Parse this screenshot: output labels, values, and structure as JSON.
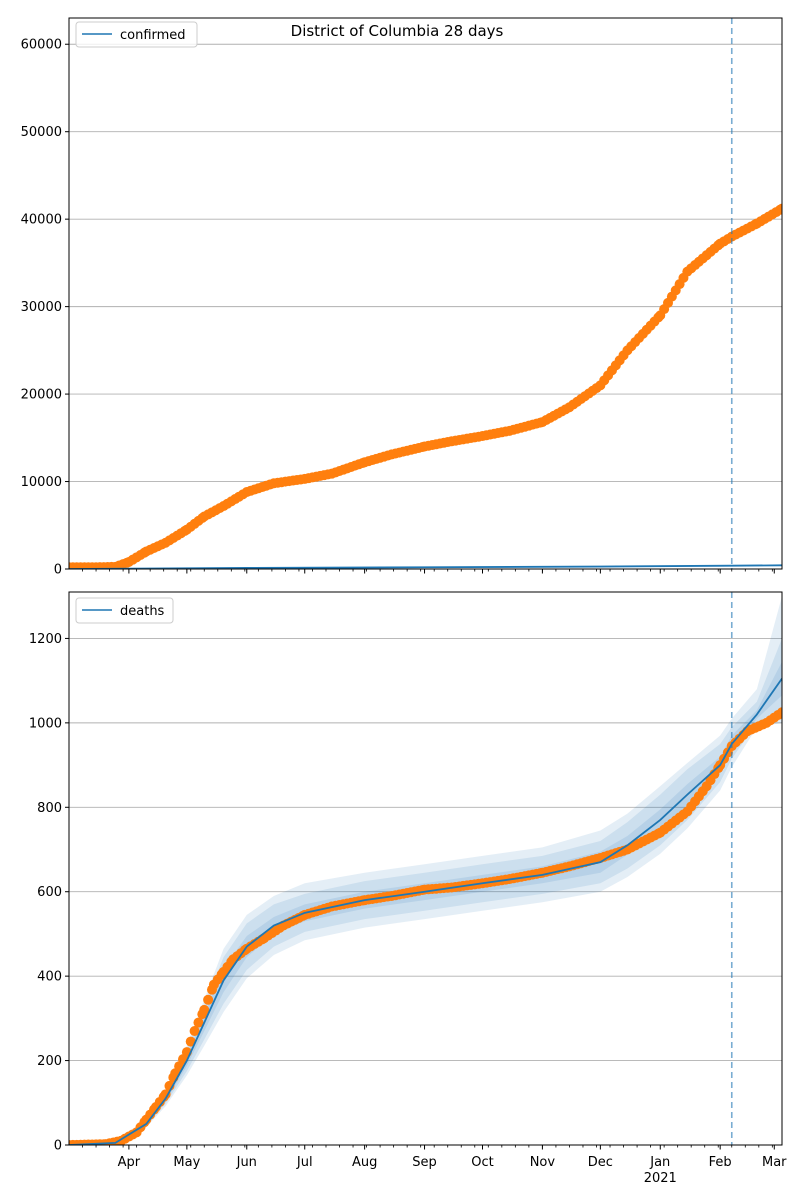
{
  "figure": {
    "title": "District of Columbia 28 days"
  },
  "chart_data": [
    {
      "type": "line",
      "name": "confirmed-panel",
      "title": "District of Columbia 28 days",
      "xlabel": "",
      "ylabel": "",
      "x_range": [
        "2020-03-01",
        "2021-03-05"
      ],
      "ylim": [
        0,
        63000
      ],
      "y_ticks": [
        0,
        10000,
        20000,
        30000,
        40000,
        50000,
        60000
      ],
      "grid": "horizontal",
      "legend": {
        "placement": "top-left",
        "entries": [
          "confirmed"
        ]
      },
      "forecast_start": "2021-02-07",
      "colors": {
        "model": "#1f77b4",
        "observed": "#ff7f0e",
        "band": "#1f77b4"
      },
      "series": [
        {
          "name": "confirmed",
          "style": "line",
          "x": [
            "2020-03-01",
            "2020-06-01",
            "2020-09-01",
            "2020-12-01",
            "2021-02-07",
            "2021-03-05"
          ],
          "values": [
            0,
            120,
            200,
            280,
            380,
            420
          ]
        },
        {
          "style": "points",
          "x": [
            "2020-03-01",
            "2020-03-15",
            "2020-03-25",
            "2020-04-01",
            "2020-04-10",
            "2020-04-20",
            "2020-05-01",
            "2020-05-10",
            "2020-05-20",
            "2020-06-01",
            "2020-06-15",
            "2020-07-01",
            "2020-07-15",
            "2020-08-01",
            "2020-08-15",
            "2020-09-01",
            "2020-09-15",
            "2020-10-01",
            "2020-10-15",
            "2020-11-01",
            "2020-11-15",
            "2020-12-01",
            "2020-12-15",
            "2021-01-01",
            "2021-01-15",
            "2021-02-01",
            "2021-02-07",
            "2021-02-20",
            "2021-03-05"
          ],
          "values": [
            200,
            200,
            250,
            800,
            2000,
            3000,
            4500,
            6000,
            7200,
            8800,
            9800,
            10300,
            10900,
            12200,
            13100,
            14000,
            14600,
            15200,
            15800,
            16800,
            18500,
            21000,
            25000,
            29000,
            34000,
            37200,
            38000,
            39500,
            41200
          ]
        }
      ],
      "bands": []
    },
    {
      "type": "line",
      "name": "deaths-panel",
      "title": "",
      "xlabel": "",
      "ylabel": "",
      "x_range": [
        "2020-03-01",
        "2021-03-05"
      ],
      "ylim": [
        0,
        1310
      ],
      "y_ticks": [
        0,
        200,
        400,
        600,
        800,
        1000,
        1200
      ],
      "x_tick_labels": [
        "Apr",
        "May",
        "Jun",
        "Jul",
        "Aug",
        "Sep",
        "Oct",
        "Nov",
        "Dec",
        "Jan",
        "Feb",
        "Mar"
      ],
      "x_tick_dates": [
        "2020-04-01",
        "2020-05-01",
        "2020-06-01",
        "2020-07-01",
        "2020-08-01",
        "2020-09-01",
        "2020-10-01",
        "2020-11-01",
        "2020-12-01",
        "2021-01-01",
        "2021-02-01",
        "2021-03-01"
      ],
      "x_year_label": "2021",
      "grid": "horizontal",
      "legend": {
        "placement": "top-left",
        "entries": [
          "deaths"
        ]
      },
      "forecast_start": "2021-02-07",
      "colors": {
        "model": "#1f77b4",
        "observed": "#ff7f0e",
        "band": "#1f77b4"
      },
      "series": [
        {
          "name": "deaths",
          "style": "line",
          "x": [
            "2020-03-01",
            "2020-03-25",
            "2020-04-10",
            "2020-04-20",
            "2020-05-01",
            "2020-05-10",
            "2020-05-20",
            "2020-06-01",
            "2020-06-15",
            "2020-07-01",
            "2020-08-01",
            "2020-09-01",
            "2020-10-01",
            "2020-11-01",
            "2020-12-01",
            "2020-12-15",
            "2021-01-01",
            "2021-01-15",
            "2021-02-01",
            "2021-02-07",
            "2021-02-20",
            "2021-03-05"
          ],
          "values": [
            0,
            5,
            50,
            110,
            200,
            290,
            390,
            470,
            520,
            550,
            580,
            600,
            620,
            640,
            670,
            710,
            770,
            830,
            900,
            950,
            1020,
            1105
          ]
        },
        {
          "style": "points",
          "x": [
            "2020-03-01",
            "2020-03-20",
            "2020-03-28",
            "2020-04-01",
            "2020-04-05",
            "2020-04-10",
            "2020-04-15",
            "2020-04-20",
            "2020-04-25",
            "2020-05-01",
            "2020-05-05",
            "2020-05-10",
            "2020-05-15",
            "2020-05-20",
            "2020-05-25",
            "2020-06-01",
            "2020-06-10",
            "2020-06-20",
            "2020-07-01",
            "2020-07-15",
            "2020-08-01",
            "2020-08-15",
            "2020-09-01",
            "2020-09-15",
            "2020-10-01",
            "2020-10-15",
            "2020-11-01",
            "2020-11-15",
            "2020-12-01",
            "2020-12-15",
            "2021-01-01",
            "2021-01-15",
            "2021-01-25",
            "2021-02-01",
            "2021-02-07",
            "2021-02-15",
            "2021-02-25",
            "2021-03-05"
          ],
          "values": [
            0,
            2,
            10,
            20,
            30,
            60,
            90,
            120,
            170,
            220,
            270,
            320,
            380,
            410,
            440,
            465,
            490,
            520,
            545,
            565,
            580,
            590,
            605,
            610,
            620,
            630,
            645,
            660,
            680,
            700,
            740,
            790,
            850,
            900,
            945,
            980,
            1000,
            1025
          ]
        }
      ],
      "bands": [
        {
          "x": [
            "2020-03-01",
            "2020-03-25",
            "2020-04-10",
            "2020-04-20",
            "2020-05-01",
            "2020-05-10",
            "2020-05-20",
            "2020-06-01",
            "2020-06-15",
            "2020-07-01",
            "2020-08-01",
            "2020-09-01",
            "2020-10-01",
            "2020-11-01",
            "2020-12-01",
            "2020-12-15",
            "2021-01-01",
            "2021-01-15",
            "2021-02-01",
            "2021-02-07",
            "2021-02-20",
            "2021-03-05"
          ],
          "lower": [
            0,
            4,
            42,
            92,
            165,
            235,
            315,
            395,
            450,
            485,
            515,
            535,
            555,
            575,
            600,
            635,
            690,
            750,
            840,
            895,
            990,
            1000
          ],
          "upper": [
            0,
            6,
            58,
            128,
            235,
            345,
            465,
            545,
            590,
            620,
            645,
            665,
            685,
            705,
            745,
            785,
            850,
            905,
            970,
            1010,
            1080,
            1300
          ]
        },
        {
          "x": [
            "2020-03-01",
            "2020-03-25",
            "2020-04-10",
            "2020-04-20",
            "2020-05-01",
            "2020-05-10",
            "2020-05-20",
            "2020-06-01",
            "2020-06-15",
            "2020-07-01",
            "2020-08-01",
            "2020-09-01",
            "2020-10-01",
            "2020-11-01",
            "2020-12-01",
            "2020-12-15",
            "2021-01-01",
            "2021-01-15",
            "2021-02-01",
            "2021-02-07",
            "2021-02-20",
            "2021-03-05"
          ],
          "lower": [
            0,
            4,
            45,
            98,
            175,
            250,
            335,
            415,
            470,
            505,
            535,
            555,
            575,
            595,
            620,
            655,
            710,
            770,
            860,
            915,
            1000,
            1030
          ],
          "upper": [
            0,
            6,
            55,
            122,
            225,
            330,
            445,
            525,
            570,
            595,
            625,
            645,
            665,
            685,
            720,
            765,
            830,
            890,
            950,
            990,
            1050,
            1200
          ]
        },
        {
          "x": [
            "2020-03-01",
            "2020-03-25",
            "2020-04-10",
            "2020-04-20",
            "2020-05-01",
            "2020-05-10",
            "2020-05-20",
            "2020-06-01",
            "2020-06-15",
            "2020-07-01",
            "2020-08-01",
            "2020-09-01",
            "2020-10-01",
            "2020-11-01",
            "2020-12-01",
            "2020-12-15",
            "2021-01-01",
            "2021-01-15",
            "2021-02-01",
            "2021-02-07",
            "2021-02-20",
            "2021-03-05"
          ],
          "lower": [
            0,
            5,
            47,
            103,
            187,
            270,
            362,
            445,
            500,
            530,
            560,
            580,
            600,
            620,
            645,
            688,
            745,
            805,
            880,
            930,
            1010,
            1065
          ],
          "upper": [
            0,
            5,
            53,
            117,
            213,
            310,
            418,
            495,
            540,
            570,
            600,
            620,
            640,
            660,
            695,
            732,
            795,
            855,
            920,
            970,
            1030,
            1145
          ]
        }
      ]
    }
  ]
}
